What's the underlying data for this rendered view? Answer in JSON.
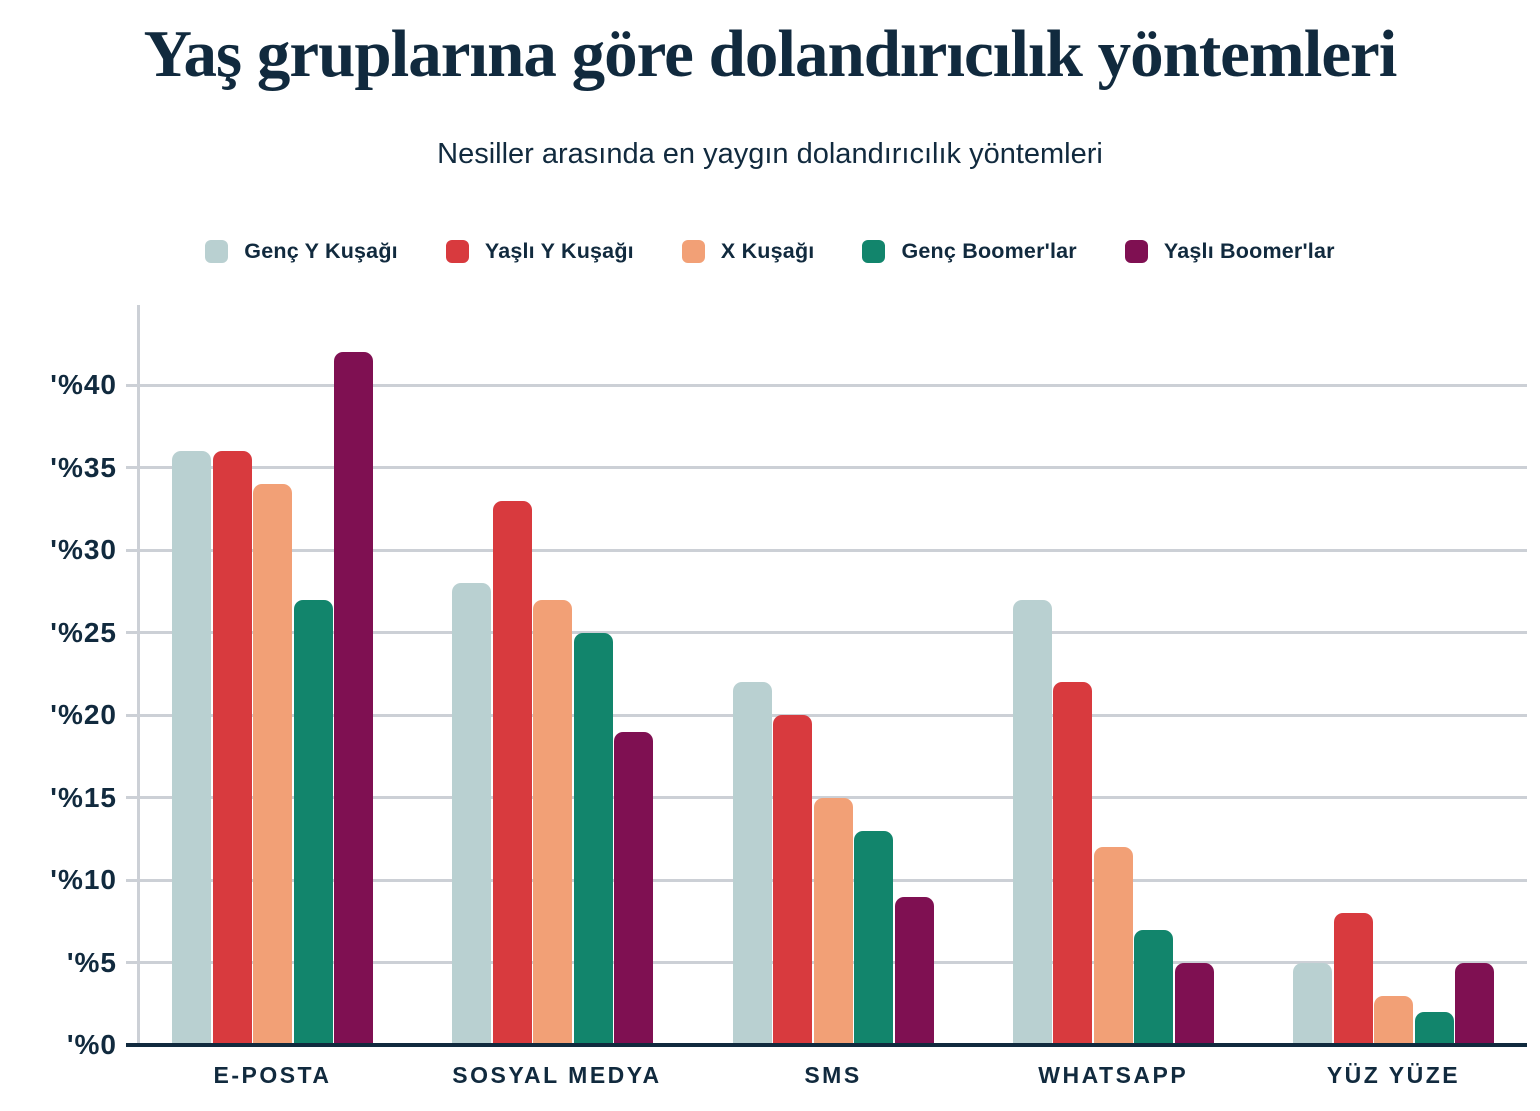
{
  "chart_data": {
    "type": "bar",
    "title": "Yaş gruplarına göre dolandırıcılık yöntemleri",
    "subtitle": "Nesiller arasında en yaygın dolandırıcılık yöntemleri",
    "categories": [
      "E-POSTA",
      "SOSYAL MEDYA",
      "SMS",
      "WHATSAPP",
      "YÜZ YÜZE"
    ],
    "series": [
      {
        "name": "Genç Y Kuşağı",
        "color": "#b9d0d1",
        "values": [
          36,
          28,
          22,
          27,
          5
        ]
      },
      {
        "name": "Yaşlı Y Kuşağı",
        "color": "#d83a3e",
        "values": [
          36,
          33,
          20,
          22,
          8
        ]
      },
      {
        "name": "X Kuşağı",
        "color": "#f2a076",
        "values": [
          34,
          27,
          15,
          12,
          3
        ]
      },
      {
        "name": "Genç Boomer'lar",
        "color": "#12856c",
        "values": [
          27,
          25,
          13,
          7,
          2
        ]
      },
      {
        "name": "Yaşlı Boomer'lar",
        "color": "#7f1052",
        "values": [
          42,
          19,
          9,
          5,
          5
        ]
      }
    ],
    "y_ticks": [
      {
        "value": 0,
        "label": "'%0"
      },
      {
        "value": 5,
        "label": "'%5"
      },
      {
        "value": 10,
        "label": "'%10"
      },
      {
        "value": 15,
        "label": "'%15"
      },
      {
        "value": 20,
        "label": "'%20"
      },
      {
        "value": 25,
        "label": "'%25"
      },
      {
        "value": 30,
        "label": "'%30"
      },
      {
        "value": 35,
        "label": "'%35"
      },
      {
        "value": 40,
        "label": "'%40"
      }
    ],
    "ylim": [
      0,
      44.8
    ],
    "unit": "percent",
    "grid": true,
    "legend_position": "top"
  },
  "colors": {
    "text": "#112a3e",
    "gridline": "#ccd0d6",
    "axis": "#112a3e",
    "background": "#ffffff"
  }
}
